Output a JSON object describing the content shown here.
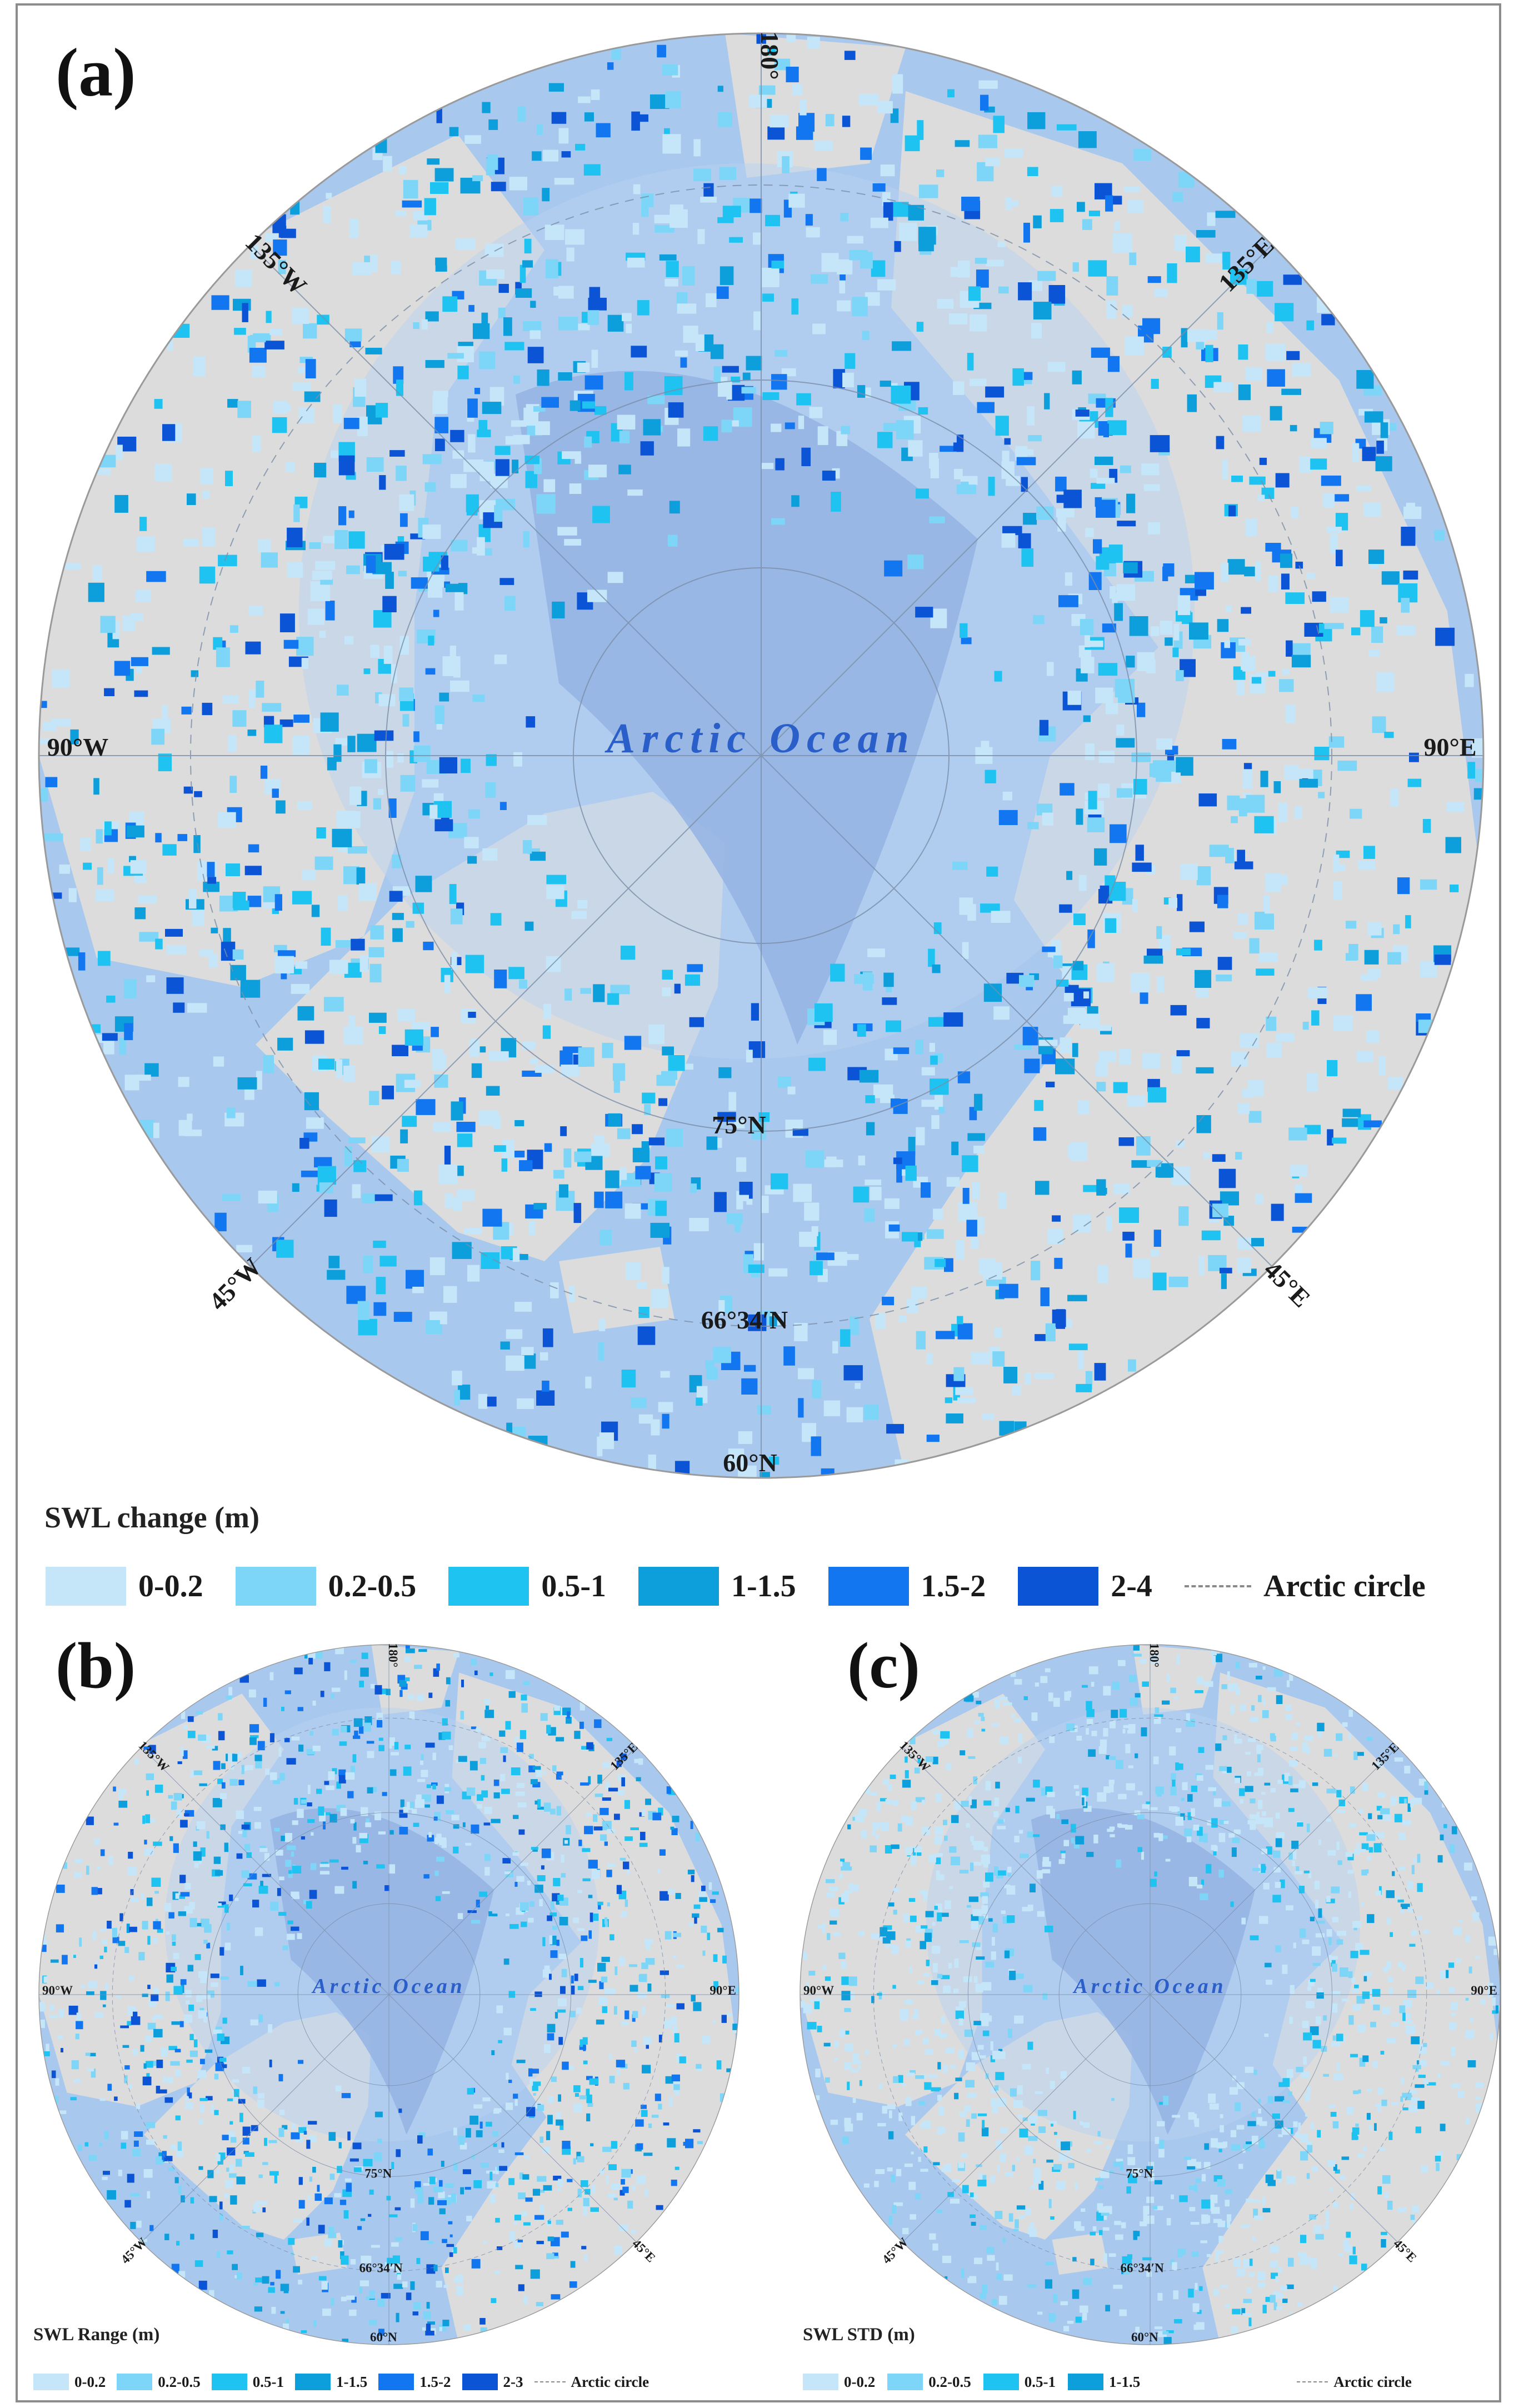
{
  "panels": [
    {
      "id": "a",
      "tag": "(a)",
      "legend_title": "SWL change (m)",
      "classes": [
        {
          "label": "0-0.2",
          "color": "#c5e6f9"
        },
        {
          "label": "0.2-0.5",
          "color": "#7dd6f7"
        },
        {
          "label": "0.5-1",
          "color": "#1ec3f2"
        },
        {
          "label": "1-1.5",
          "color": "#0c9fdc"
        },
        {
          "label": "1.5-2",
          "color": "#1176f0"
        },
        {
          "label": "2-4",
          "color": "#0b54d6"
        }
      ]
    },
    {
      "id": "b",
      "tag": "(b)",
      "legend_title": "SWL Range (m)",
      "classes": [
        {
          "label": "0-0.2",
          "color": "#c5e6f9"
        },
        {
          "label": "0.2-0.5",
          "color": "#7dd6f7"
        },
        {
          "label": "0.5-1",
          "color": "#1ec3f2"
        },
        {
          "label": "1-1.5",
          "color": "#0c9fdc"
        },
        {
          "label": "1.5-2",
          "color": "#1176f0"
        },
        {
          "label": "2-3",
          "color": "#0b54d6"
        }
      ]
    },
    {
      "id": "c",
      "tag": "(c)",
      "legend_title": "SWL STD (m)",
      "classes": [
        {
          "label": "0-0.2",
          "color": "#c5e6f9"
        },
        {
          "label": "0.2-0.5",
          "color": "#7dd6f7"
        },
        {
          "label": "0.5-1",
          "color": "#1ec3f2"
        },
        {
          "label": "1-1.5",
          "color": "#0c9fdc"
        }
      ]
    }
  ],
  "map_labels": {
    "lon_180": "180°",
    "lon_135w": "135°W",
    "lon_135e": "135°E",
    "lon_90w": "90°W",
    "lon_90e": "90°E",
    "lon_45w": "45°W",
    "lon_45e": "45°E",
    "lat_75": "75°N",
    "lat_arctic": "66°34′N",
    "lat_60": "60°N",
    "ocean": "Arctic Ocean"
  },
  "arctic_circle_label": "Arctic circle",
  "colors": {
    "ocean": "#a9c8ee",
    "deep_ocean": "#94b3e3",
    "land": "#dcdcdc",
    "shelf": "#b8d1f0",
    "ocean_text": "#2a5ec9",
    "graticule": "#7b8ea8"
  }
}
